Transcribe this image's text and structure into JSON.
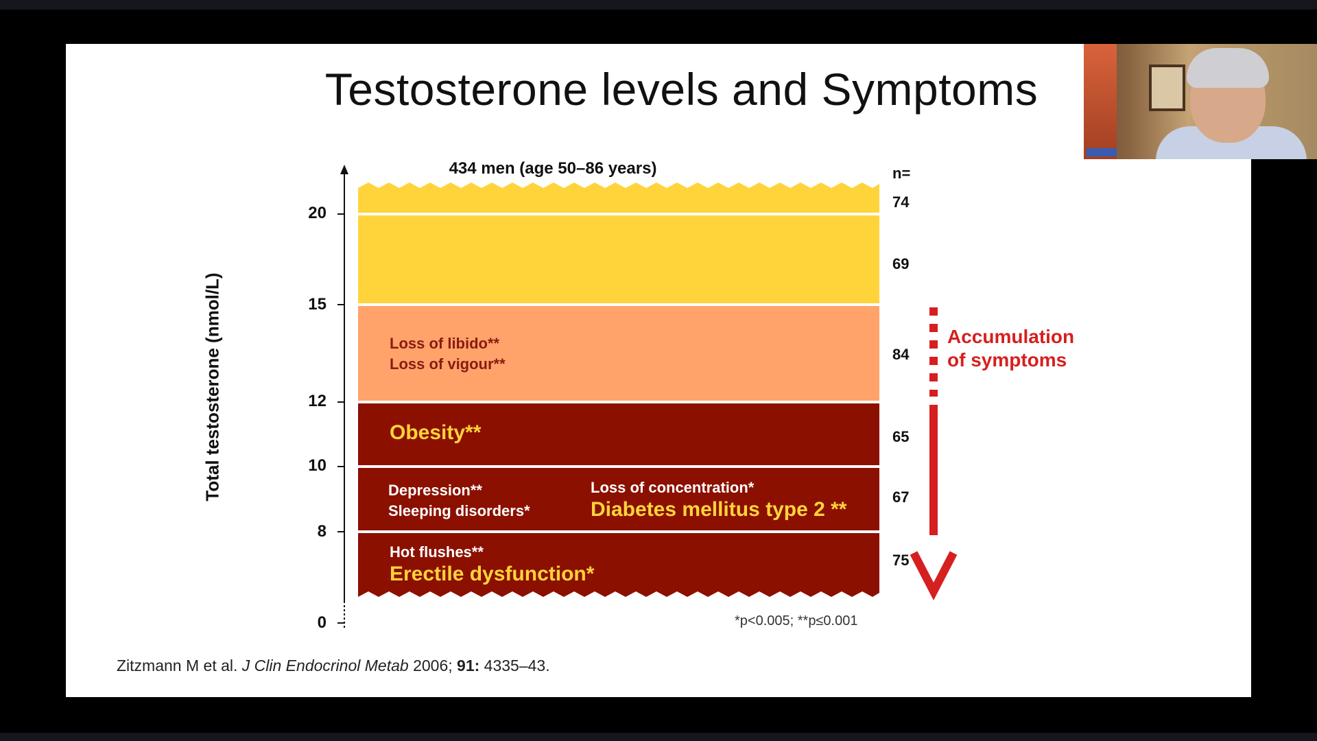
{
  "slide": {
    "title": "Testosterone levels and Symptoms",
    "cohort": "434 men (age 50–86 years)",
    "n_label": "n=",
    "y_axis_label": "Total testosterone (nmol/L)",
    "y_ticks": [
      "20",
      "15",
      "12",
      "10",
      "8",
      "0"
    ],
    "bands": [
      {
        "n": "74",
        "color": "#ffd43b"
      },
      {
        "n": "69",
        "color": "#ffd43b"
      },
      {
        "n": "84",
        "color": "#ffa36b",
        "symptoms": [
          "Loss of libido**",
          "Loss of vigour**"
        ]
      },
      {
        "n": "65",
        "color": "#8b1000",
        "symptoms": [
          "Obesity**"
        ]
      },
      {
        "n": "67",
        "color": "#8b1000",
        "symptoms": [
          "Depression**",
          "Sleeping disorders*",
          "Loss of concentration*",
          "Diabetes mellitus type 2 **"
        ]
      },
      {
        "n": "75",
        "color": "#8b1000",
        "symptoms": [
          "Hot flushes**",
          "Erectile dysfunction*"
        ]
      }
    ],
    "accumulation_line1": "Accumulation",
    "accumulation_line2": "of symptoms",
    "p_values": "*p<0.005; **p≤0.001",
    "citation_authors": "Zitzmann M et al.",
    "citation_journal": "J Clin Endocrinol Metab",
    "citation_year": "2006;",
    "citation_volume": "91:",
    "citation_pages": "4335–43."
  },
  "colors": {
    "accent_red": "#d61f1f",
    "symptom_yellow": "#ffd43b"
  }
}
